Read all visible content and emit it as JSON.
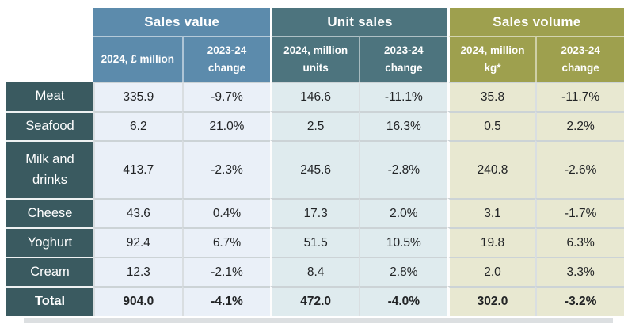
{
  "table": {
    "groups": [
      {
        "label": "Sales value",
        "header_color": "#5c8bac",
        "cell_bg": "#eaf0f8"
      },
      {
        "label": "Unit sales",
        "header_color": "#4d747e",
        "cell_bg": "#dfebee"
      },
      {
        "label": "Sales volume",
        "header_color": "#9ea04e",
        "cell_bg": "#e8e8d1"
      }
    ],
    "subheaders": [
      "2024, £ million",
      "2023-24 change",
      "2024, million units",
      "2023-24 change",
      "2024, million kg*",
      "2023-24 change"
    ],
    "rows": [
      {
        "label": "Meat",
        "values": [
          "335.9",
          "-9.7%",
          "146.6",
          "-11.1%",
          "35.8",
          "-11.7%"
        ]
      },
      {
        "label": "Seafood",
        "values": [
          "6.2",
          "21.0%",
          "2.5",
          "16.3%",
          "0.5",
          "2.2%"
        ]
      },
      {
        "label": "Milk and drinks",
        "values": [
          "413.7",
          "-2.3%",
          "245.6",
          "-2.8%",
          "240.8",
          "-2.6%"
        ]
      },
      {
        "label": "Cheese",
        "values": [
          "43.6",
          "0.4%",
          "17.3",
          "2.0%",
          "3.1",
          "-1.7%"
        ]
      },
      {
        "label": "Yoghurt",
        "values": [
          "92.4",
          "6.7%",
          "51.5",
          "10.5%",
          "19.8",
          "6.3%"
        ]
      },
      {
        "label": "Cream",
        "values": [
          "12.3",
          "-2.1%",
          "8.4",
          "2.8%",
          "2.0",
          "3.3%"
        ]
      },
      {
        "label": "Total",
        "values": [
          "904.0",
          "-4.1%",
          "472.0",
          "-4.0%",
          "302.0",
          "-3.2%"
        ]
      }
    ],
    "colors": {
      "row_header_bg": "#3a5a60",
      "row_border": "#ccd3d6",
      "text": "#222426",
      "header_text": "#ffffff"
    }
  }
}
